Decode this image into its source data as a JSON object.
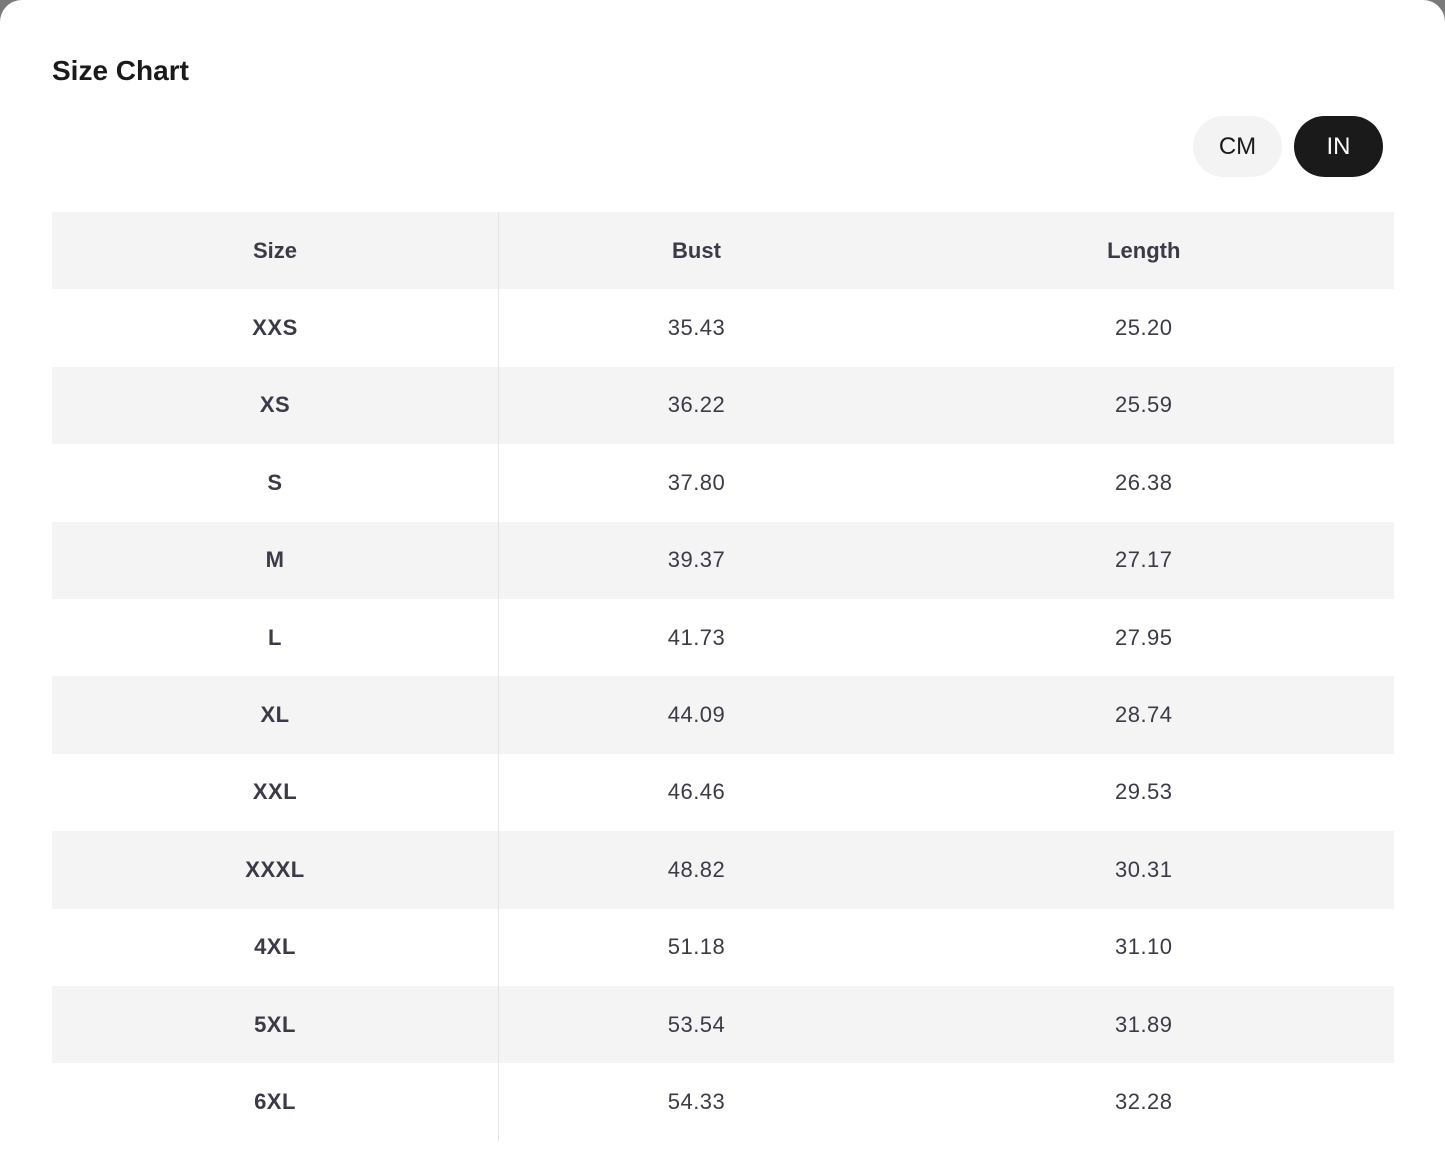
{
  "title": "Size Chart",
  "units": {
    "options": [
      "CM",
      "IN"
    ],
    "selected": "IN"
  },
  "table": {
    "headers": [
      "Size",
      "Bust",
      "Length"
    ],
    "rows": [
      [
        "XXS",
        "35.43",
        "25.20"
      ],
      [
        "XS",
        "36.22",
        "25.59"
      ],
      [
        "S",
        "37.80",
        "26.38"
      ],
      [
        "M",
        "39.37",
        "27.17"
      ],
      [
        "L",
        "41.73",
        "27.95"
      ],
      [
        "XL",
        "44.09",
        "28.74"
      ],
      [
        "XXL",
        "46.46",
        "29.53"
      ],
      [
        "XXXL",
        "48.82",
        "30.31"
      ],
      [
        "4XL",
        "51.18",
        "31.10"
      ],
      [
        "5XL",
        "53.54",
        "31.89"
      ],
      [
        "6XL",
        "54.33",
        "32.28"
      ]
    ]
  }
}
